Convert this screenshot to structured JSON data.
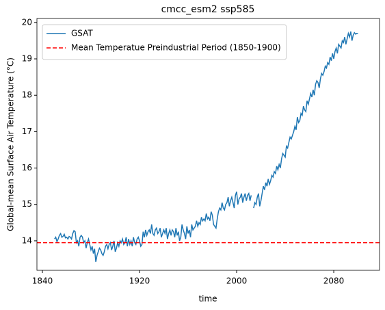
{
  "chart_data": {
    "type": "line",
    "title": "cmcc_esm2 ssp585",
    "xlabel": "time",
    "ylabel": "Global-mean Surface Air Temperature (°C)",
    "x": [
      1850,
      1851,
      1852,
      1853,
      1854,
      1855,
      1856,
      1857,
      1858,
      1859,
      1860,
      1861,
      1862,
      1863,
      1864,
      1865,
      1866,
      1867,
      1868,
      1869,
      1870,
      1871,
      1872,
      1873,
      1874,
      1875,
      1876,
      1877,
      1878,
      1879,
      1880,
      1881,
      1882,
      1883,
      1884,
      1885,
      1886,
      1887,
      1888,
      1889,
      1890,
      1891,
      1892,
      1893,
      1894,
      1895,
      1896,
      1897,
      1898,
      1899,
      1900,
      1901,
      1902,
      1903,
      1904,
      1905,
      1906,
      1907,
      1908,
      1909,
      1910,
      1911,
      1912,
      1913,
      1914,
      1915,
      1916,
      1917,
      1918,
      1919,
      1920,
      1921,
      1922,
      1923,
      1924,
      1925,
      1926,
      1927,
      1928,
      1929,
      1930,
      1931,
      1932,
      1933,
      1934,
      1935,
      1936,
      1937,
      1938,
      1939,
      1940,
      1941,
      1942,
      1943,
      1944,
      1945,
      1946,
      1947,
      1948,
      1949,
      1950,
      1951,
      1952,
      1953,
      1954,
      1955,
      1956,
      1957,
      1958,
      1959,
      1960,
      1961,
      1962,
      1963,
      1964,
      1965,
      1966,
      1967,
      1968,
      1969,
      1970,
      1971,
      1972,
      1973,
      1974,
      1975,
      1976,
      1977,
      1978,
      1979,
      1980,
      1981,
      1982,
      1983,
      1984,
      1985,
      1986,
      1987,
      1988,
      1989,
      1990,
      1991,
      1992,
      1993,
      1994,
      1995,
      1996,
      1997,
      1998,
      1999,
      2000,
      2001,
      2002,
      2003,
      2004,
      2005,
      2006,
      2007,
      2008,
      2009,
      2010,
      2011,
      2012,
      2013,
      2014,
      2015,
      2016,
      2017,
      2018,
      2019,
      2020,
      2021,
      2022,
      2023,
      2024,
      2025,
      2026,
      2027,
      2028,
      2029,
      2030,
      2031,
      2032,
      2033,
      2034,
      2035,
      2036,
      2037,
      2038,
      2039,
      2040,
      2041,
      2042,
      2043,
      2044,
      2045,
      2046,
      2047,
      2048,
      2049,
      2050,
      2051,
      2052,
      2053,
      2054,
      2055,
      2056,
      2057,
      2058,
      2059,
      2060,
      2061,
      2062,
      2063,
      2064,
      2065,
      2066,
      2067,
      2068,
      2069,
      2070,
      2071,
      2072,
      2073,
      2074,
      2075,
      2076,
      2077,
      2078,
      2079,
      2080,
      2081,
      2082,
      2083,
      2084,
      2085,
      2086,
      2087,
      2088,
      2089,
      2090,
      2091,
      2092,
      2093,
      2094,
      2095,
      2096,
      2097,
      2098,
      2099,
      2100
    ],
    "series": [
      {
        "name": "GSAT",
        "color": "#1f77b4",
        "values": [
          14.05,
          14.1,
          13.98,
          14.05,
          14.15,
          14.2,
          14.1,
          14.12,
          14.18,
          14.08,
          14.1,
          14.05,
          14.12,
          14.1,
          14.05,
          14.2,
          14.28,
          14.25,
          13.95,
          14.0,
          13.85,
          14.1,
          14.15,
          14.1,
          13.95,
          14.0,
          13.8,
          13.95,
          14.05,
          13.9,
          13.75,
          13.85,
          13.65,
          13.78,
          13.42,
          13.6,
          13.7,
          13.8,
          13.75,
          13.65,
          13.6,
          13.7,
          13.85,
          13.9,
          13.78,
          13.9,
          13.95,
          13.75,
          13.85,
          14.0,
          13.7,
          13.8,
          13.95,
          13.85,
          14.0,
          13.95,
          14.05,
          13.9,
          13.95,
          14.1,
          13.85,
          14.05,
          13.9,
          14.0,
          13.85,
          14.1,
          13.95,
          13.9,
          14.05,
          14.1,
          14.0,
          13.85,
          13.9,
          14.25,
          14.1,
          14.3,
          14.15,
          14.25,
          14.3,
          14.2,
          14.45,
          14.2,
          14.15,
          14.3,
          14.35,
          14.2,
          14.25,
          14.35,
          14.1,
          14.2,
          14.3,
          14.2,
          14.35,
          14.05,
          14.2,
          14.3,
          14.15,
          14.3,
          14.25,
          14.1,
          14.35,
          14.15,
          14.25,
          14.0,
          14.1,
          14.45,
          14.3,
          14.2,
          14.05,
          14.4,
          14.2,
          14.3,
          14.1,
          14.45,
          14.3,
          14.35,
          14.4,
          14.55,
          14.4,
          14.5,
          14.45,
          14.65,
          14.55,
          14.6,
          14.55,
          14.75,
          14.6,
          14.65,
          14.55,
          14.8,
          14.7,
          14.45,
          14.4,
          14.35,
          14.6,
          14.8,
          14.9,
          14.85,
          15.05,
          14.9,
          14.85,
          15.0,
          15.05,
          15.2,
          14.95,
          15.1,
          15.2,
          15.05,
          14.9,
          15.25,
          15.35,
          15.0,
          15.15,
          15.2,
          15.3,
          15.05,
          15.2,
          15.3,
          15.1,
          15.25,
          15.3,
          15.1,
          15.25,
          null,
          14.9,
          15.05,
          15.0,
          15.2,
          15.3,
          14.95,
          15.1,
          15.3,
          15.5,
          15.4,
          15.6,
          15.5,
          15.7,
          15.55,
          15.65,
          15.8,
          15.75,
          15.9,
          15.85,
          16.05,
          15.95,
          16.1,
          16.0,
          16.25,
          16.4,
          16.35,
          16.3,
          16.6,
          16.55,
          16.7,
          16.85,
          16.8,
          16.9,
          17.0,
          17.15,
          17.05,
          17.4,
          17.25,
          17.3,
          17.5,
          17.45,
          17.7,
          17.6,
          17.55,
          17.85,
          17.75,
          17.9,
          18.05,
          17.95,
          18.15,
          18.0,
          18.3,
          18.4,
          18.35,
          18.2,
          18.45,
          18.6,
          18.55,
          18.65,
          18.8,
          18.75,
          18.9,
          18.85,
          19.05,
          18.95,
          19.15,
          19.0,
          19.2,
          19.3,
          19.15,
          19.4,
          19.35,
          19.3,
          19.5,
          19.45,
          19.6,
          19.4,
          19.55,
          19.7,
          19.6,
          19.75,
          19.5,
          19.65,
          19.72,
          19.68,
          19.7,
          19.7
        ]
      }
    ],
    "hlines": [
      {
        "name": "Mean Temperatue Preindustrial Period (1850-1900)",
        "value": 13.95,
        "color": "#ff0000",
        "style": "dashed"
      }
    ],
    "xlim": [
      1835.5,
      2117.7
    ],
    "xticks": [
      1840,
      1920,
      2000,
      2080
    ],
    "ylim": [
      13.19,
      20.11
    ],
    "yticks": [
      14,
      15,
      16,
      17,
      18,
      19,
      20
    ],
    "legend": "upper left",
    "grid": false
  }
}
